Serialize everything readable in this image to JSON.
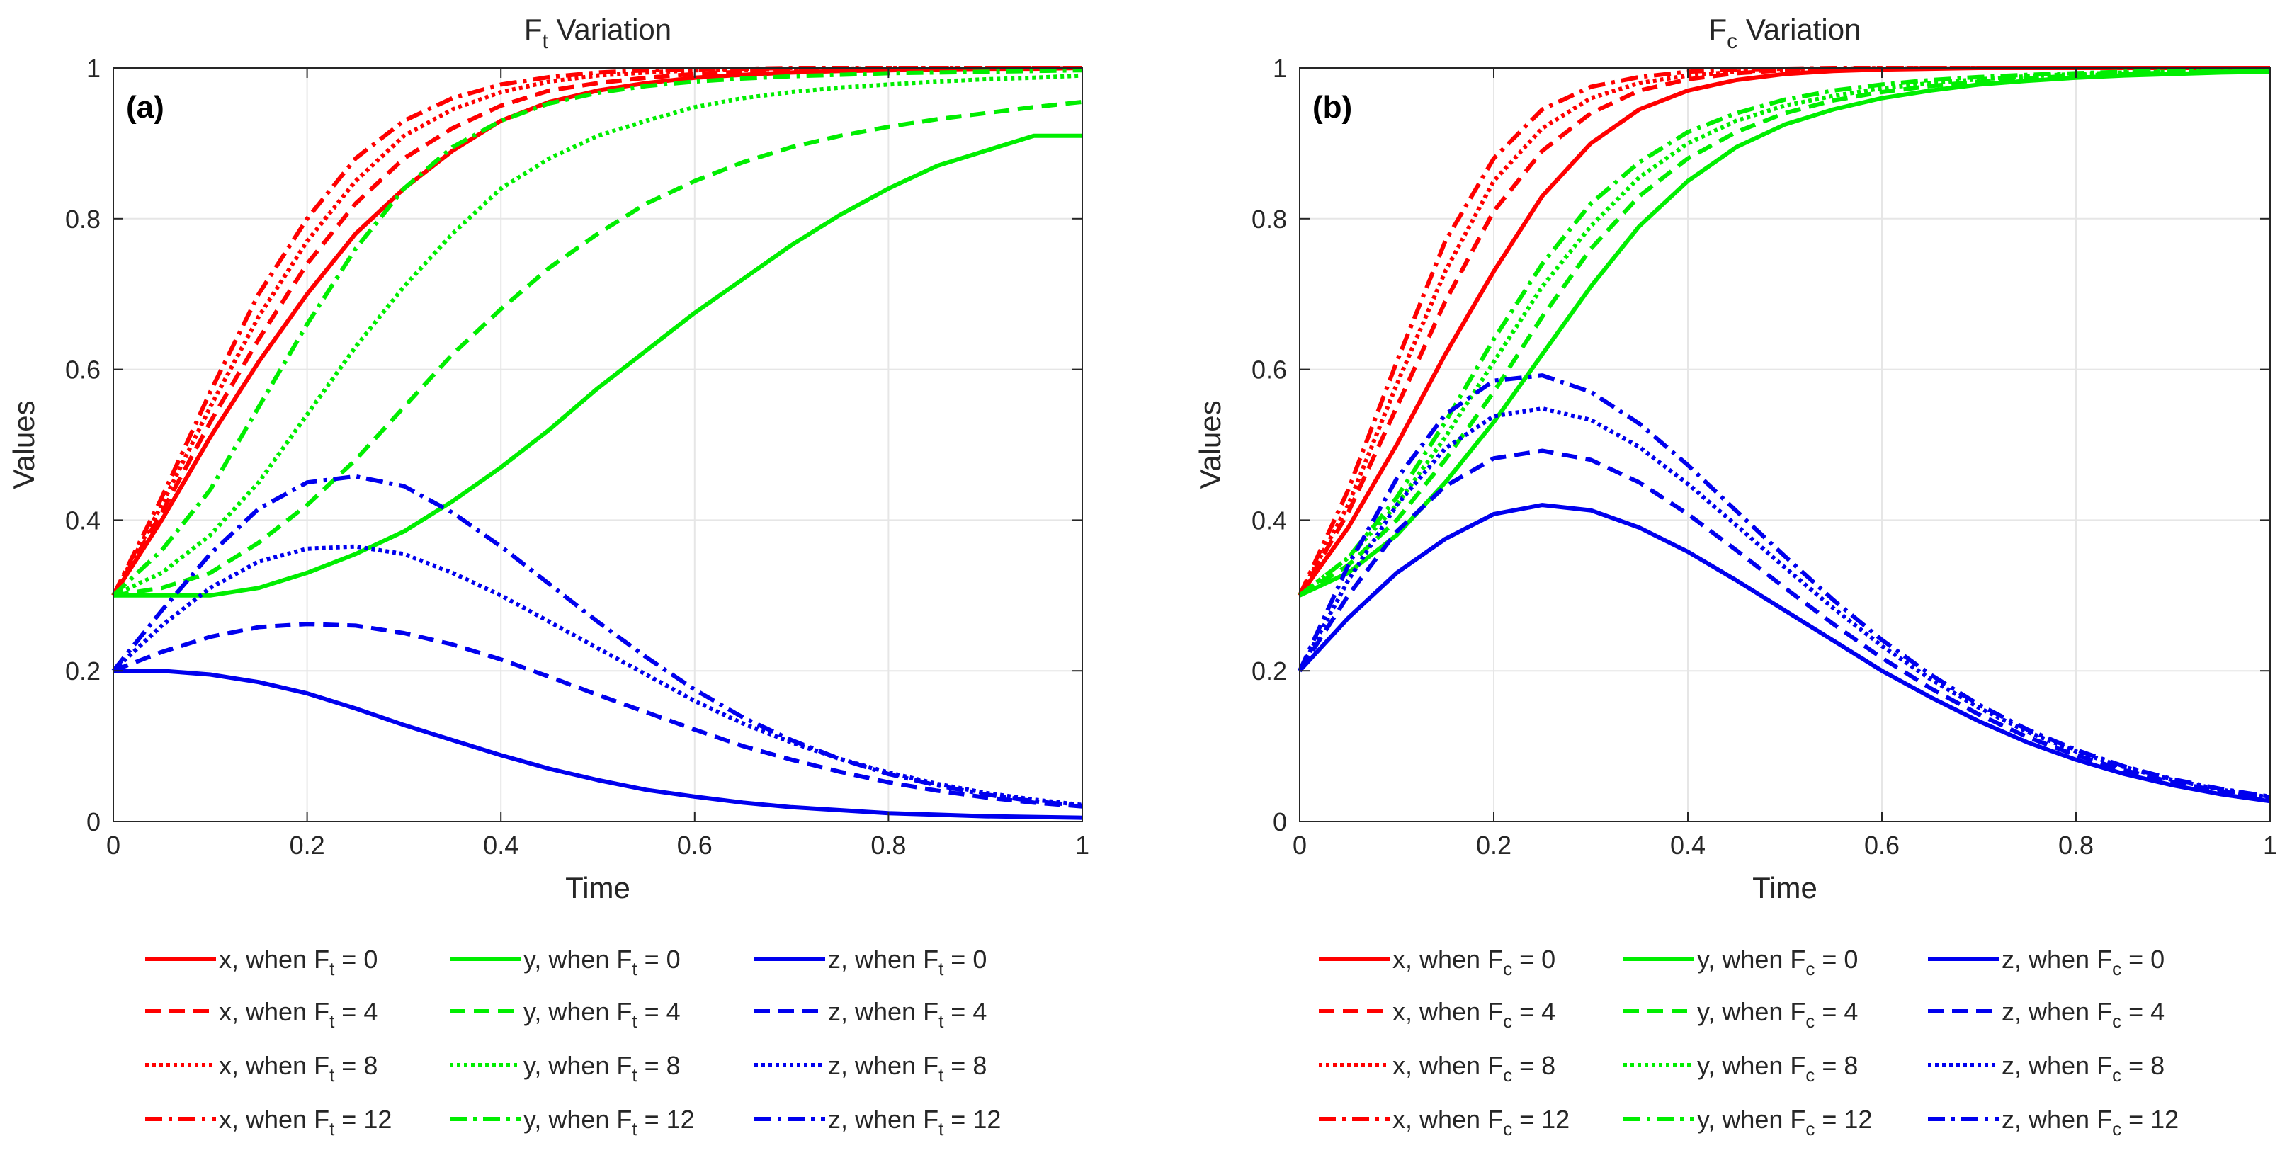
{
  "chart_data": [
    {
      "type": "line",
      "panel_label": "(a)",
      "title": {
        "prefix": "F",
        "subscript": "t",
        "suffix": " Variation"
      },
      "xlabel": "Time",
      "ylabel": "Values",
      "xlim": [
        0,
        1
      ],
      "ylim": [
        0,
        1
      ],
      "x_ticks": [
        "0",
        "0.2",
        "0.4",
        "0.6",
        "0.8",
        "1"
      ],
      "y_ticks": [
        "0",
        "0.2",
        "0.4",
        "0.6",
        "0.8",
        "1"
      ],
      "grid": true,
      "legend_position": "bottom, outside, 3 columns",
      "x": [
        0,
        0.05,
        0.1,
        0.15,
        0.2,
        0.25,
        0.3,
        0.35,
        0.4,
        0.45,
        0.5,
        0.55,
        0.6,
        0.65,
        0.7,
        0.75,
        0.8,
        0.85,
        0.9,
        0.95,
        1
      ],
      "series": [
        {
          "name": "x, when F_t = 0",
          "legend": {
            "var": "x",
            "sub": "t",
            "val": "0"
          },
          "color": "#ff0000",
          "dash": "solid",
          "values": [
            0.3,
            0.4,
            0.51,
            0.61,
            0.7,
            0.78,
            0.84,
            0.89,
            0.93,
            0.955,
            0.97,
            0.98,
            0.987,
            0.991,
            0.994,
            0.996,
            0.997,
            0.998,
            0.999,
            0.999,
            1.0
          ]
        },
        {
          "name": "x, when F_t = 4",
          "legend": {
            "var": "x",
            "sub": "t",
            "val": "4"
          },
          "color": "#ff0000",
          "dash": "dashed",
          "values": [
            0.3,
            0.41,
            0.53,
            0.64,
            0.74,
            0.82,
            0.88,
            0.92,
            0.95,
            0.97,
            0.98,
            0.987,
            0.992,
            0.995,
            0.997,
            0.998,
            0.999,
            0.999,
            1.0,
            1.0,
            1.0
          ]
        },
        {
          "name": "x, when F_t = 8",
          "legend": {
            "var": "x",
            "sub": "t",
            "val": "8"
          },
          "color": "#ff0000",
          "dash": "dotted",
          "values": [
            0.3,
            0.42,
            0.55,
            0.67,
            0.77,
            0.85,
            0.91,
            0.945,
            0.968,
            0.982,
            0.99,
            0.994,
            0.997,
            0.998,
            0.999,
            0.999,
            1.0,
            1.0,
            1.0,
            1.0,
            1.0
          ]
        },
        {
          "name": "x, when F_t = 12",
          "legend": {
            "var": "x",
            "sub": "t",
            "val": "12"
          },
          "color": "#ff0000",
          "dash": "dashdot",
          "values": [
            0.3,
            0.43,
            0.57,
            0.7,
            0.8,
            0.88,
            0.93,
            0.96,
            0.978,
            0.988,
            0.994,
            0.997,
            0.998,
            0.999,
            1.0,
            1.0,
            1.0,
            1.0,
            1.0,
            1.0,
            1.0
          ]
        },
        {
          "name": "y, when F_t = 0",
          "legend": {
            "var": "y",
            "sub": "t",
            "val": "0"
          },
          "color": "#00ee00",
          "dash": "solid",
          "values": [
            0.3,
            0.3,
            0.3,
            0.31,
            0.33,
            0.355,
            0.385,
            0.425,
            0.47,
            0.52,
            0.575,
            0.625,
            0.675,
            0.72,
            0.765,
            0.805,
            0.84,
            0.87,
            0.89,
            0.91,
            0.91
          ]
        },
        {
          "name": "y, when F_t = 4",
          "legend": {
            "var": "y",
            "sub": "t",
            "val": "4"
          },
          "color": "#00ee00",
          "dash": "dashed",
          "values": [
            0.3,
            0.31,
            0.33,
            0.37,
            0.42,
            0.48,
            0.55,
            0.62,
            0.68,
            0.735,
            0.78,
            0.82,
            0.85,
            0.875,
            0.895,
            0.91,
            0.922,
            0.932,
            0.94,
            0.948,
            0.955
          ]
        },
        {
          "name": "y, when F_t = 8",
          "legend": {
            "var": "y",
            "sub": "t",
            "val": "8"
          },
          "color": "#00ee00",
          "dash": "dotted",
          "values": [
            0.3,
            0.33,
            0.38,
            0.45,
            0.54,
            0.63,
            0.71,
            0.78,
            0.84,
            0.88,
            0.91,
            0.93,
            0.948,
            0.96,
            0.968,
            0.974,
            0.978,
            0.982,
            0.985,
            0.987,
            0.99
          ]
        },
        {
          "name": "y, when F_t = 12",
          "legend": {
            "var": "y",
            "sub": "t",
            "val": "12"
          },
          "color": "#00ee00",
          "dash": "dashdot",
          "values": [
            0.3,
            0.36,
            0.44,
            0.55,
            0.66,
            0.76,
            0.84,
            0.895,
            0.93,
            0.953,
            0.967,
            0.976,
            0.982,
            0.986,
            0.989,
            0.991,
            0.993,
            0.994,
            0.995,
            0.996,
            0.997
          ]
        },
        {
          "name": "z, when F_t = 0",
          "legend": {
            "var": "z",
            "sub": "t",
            "val": "0"
          },
          "color": "#0000ee",
          "dash": "solid",
          "values": [
            0.2,
            0.2,
            0.195,
            0.185,
            0.17,
            0.15,
            0.128,
            0.108,
            0.088,
            0.07,
            0.055,
            0.042,
            0.033,
            0.025,
            0.019,
            0.015,
            0.011,
            0.009,
            0.007,
            0.006,
            0.005
          ]
        },
        {
          "name": "z, when F_t = 4",
          "legend": {
            "var": "z",
            "sub": "t",
            "val": "4"
          },
          "color": "#0000ee",
          "dash": "dashed",
          "values": [
            0.2,
            0.225,
            0.245,
            0.258,
            0.262,
            0.26,
            0.25,
            0.235,
            0.215,
            0.192,
            0.168,
            0.145,
            0.122,
            0.1,
            0.082,
            0.066,
            0.052,
            0.041,
            0.032,
            0.025,
            0.02
          ]
        },
        {
          "name": "z, when F_t = 8",
          "legend": {
            "var": "z",
            "sub": "t",
            "val": "8"
          },
          "color": "#0000ee",
          "dash": "dotted",
          "values": [
            0.2,
            0.26,
            0.31,
            0.345,
            0.362,
            0.365,
            0.355,
            0.33,
            0.3,
            0.265,
            0.23,
            0.195,
            0.16,
            0.13,
            0.105,
            0.083,
            0.065,
            0.05,
            0.038,
            0.029,
            0.022
          ]
        },
        {
          "name": "z, when F_t = 12",
          "legend": {
            "var": "z",
            "sub": "t",
            "val": "12"
          },
          "color": "#0000ee",
          "dash": "dashdot",
          "values": [
            0.2,
            0.28,
            0.355,
            0.415,
            0.45,
            0.458,
            0.445,
            0.41,
            0.365,
            0.315,
            0.265,
            0.218,
            0.175,
            0.138,
            0.108,
            0.083,
            0.063,
            0.048,
            0.036,
            0.027,
            0.021
          ]
        }
      ]
    },
    {
      "type": "line",
      "panel_label": "(b)",
      "title": {
        "prefix": "F",
        "subscript": "c",
        "suffix": " Variation"
      },
      "xlabel": "Time",
      "ylabel": "Values",
      "xlim": [
        0,
        1
      ],
      "ylim": [
        0,
        1
      ],
      "x_ticks": [
        "0",
        "0.2",
        "0.4",
        "0.6",
        "0.8",
        "1"
      ],
      "y_ticks": [
        "0",
        "0.2",
        "0.4",
        "0.6",
        "0.8",
        "1"
      ],
      "grid": true,
      "legend_position": "bottom, outside, 3 columns",
      "x": [
        0,
        0.05,
        0.1,
        0.15,
        0.2,
        0.25,
        0.3,
        0.35,
        0.4,
        0.45,
        0.5,
        0.55,
        0.6,
        0.65,
        0.7,
        0.75,
        0.8,
        0.85,
        0.9,
        0.95,
        1
      ],
      "series": [
        {
          "name": "x, when F_c = 0",
          "legend": {
            "var": "x",
            "sub": "c",
            "val": "0"
          },
          "color": "#ff0000",
          "dash": "solid",
          "values": [
            0.3,
            0.39,
            0.5,
            0.62,
            0.73,
            0.83,
            0.9,
            0.945,
            0.97,
            0.984,
            0.992,
            0.996,
            0.998,
            0.999,
            1.0,
            1.0,
            1.0,
            1.0,
            1.0,
            1.0,
            1.0
          ]
        },
        {
          "name": "x, when F_c = 4",
          "legend": {
            "var": "x",
            "sub": "c",
            "val": "4"
          },
          "color": "#ff0000",
          "dash": "dashed",
          "values": [
            0.3,
            0.41,
            0.55,
            0.69,
            0.81,
            0.89,
            0.94,
            0.97,
            0.985,
            0.993,
            0.997,
            0.998,
            0.999,
            1.0,
            1.0,
            1.0,
            1.0,
            1.0,
            1.0,
            1.0,
            1.0
          ]
        },
        {
          "name": "x, when F_c = 8",
          "legend": {
            "var": "x",
            "sub": "c",
            "val": "8"
          },
          "color": "#ff0000",
          "dash": "dotted",
          "values": [
            0.3,
            0.42,
            0.58,
            0.73,
            0.85,
            0.92,
            0.96,
            0.98,
            0.99,
            0.995,
            0.998,
            0.999,
            1.0,
            1.0,
            1.0,
            1.0,
            1.0,
            1.0,
            1.0,
            1.0,
            1.0
          ]
        },
        {
          "name": "x, when F_c = 12",
          "legend": {
            "var": "x",
            "sub": "c",
            "val": "12"
          },
          "color": "#ff0000",
          "dash": "dashdot",
          "values": [
            0.3,
            0.44,
            0.61,
            0.77,
            0.88,
            0.945,
            0.975,
            0.988,
            0.995,
            0.998,
            0.999,
            1.0,
            1.0,
            1.0,
            1.0,
            1.0,
            1.0,
            1.0,
            1.0,
            1.0,
            1.0
          ]
        },
        {
          "name": "y, when F_c = 0",
          "legend": {
            "var": "y",
            "sub": "c",
            "val": "0"
          },
          "color": "#00ee00",
          "dash": "solid",
          "values": [
            0.3,
            0.33,
            0.38,
            0.45,
            0.53,
            0.62,
            0.71,
            0.79,
            0.85,
            0.895,
            0.925,
            0.945,
            0.96,
            0.97,
            0.978,
            0.983,
            0.987,
            0.99,
            0.992,
            0.994,
            0.995
          ]
        },
        {
          "name": "y, when F_c = 4",
          "legend": {
            "var": "y",
            "sub": "c",
            "val": "4"
          },
          "color": "#00ee00",
          "dash": "dashed",
          "values": [
            0.3,
            0.34,
            0.4,
            0.48,
            0.57,
            0.67,
            0.76,
            0.83,
            0.88,
            0.915,
            0.94,
            0.957,
            0.968,
            0.976,
            0.982,
            0.986,
            0.99,
            0.992,
            0.994,
            0.995,
            0.996
          ]
        },
        {
          "name": "y, when F_c = 8",
          "legend": {
            "var": "y",
            "sub": "c",
            "val": "8"
          },
          "color": "#00ee00",
          "dash": "dotted",
          "values": [
            0.3,
            0.35,
            0.42,
            0.51,
            0.61,
            0.71,
            0.79,
            0.855,
            0.9,
            0.93,
            0.95,
            0.963,
            0.973,
            0.98,
            0.985,
            0.989,
            0.992,
            0.994,
            0.995,
            0.996,
            0.997
          ]
        },
        {
          "name": "y, when F_c = 12",
          "legend": {
            "var": "y",
            "sub": "c",
            "val": "12"
          },
          "color": "#00ee00",
          "dash": "dashdot",
          "values": [
            0.3,
            0.35,
            0.43,
            0.53,
            0.64,
            0.74,
            0.82,
            0.875,
            0.915,
            0.94,
            0.958,
            0.97,
            0.978,
            0.984,
            0.988,
            0.991,
            0.993,
            0.995,
            0.996,
            0.997,
            0.998
          ]
        },
        {
          "name": "z, when F_c = 0",
          "legend": {
            "var": "z",
            "sub": "c",
            "val": "0"
          },
          "color": "#0000ee",
          "dash": "solid",
          "values": [
            0.2,
            0.27,
            0.33,
            0.375,
            0.408,
            0.42,
            0.413,
            0.39,
            0.358,
            0.32,
            0.28,
            0.24,
            0.2,
            0.165,
            0.133,
            0.105,
            0.082,
            0.063,
            0.048,
            0.036,
            0.027
          ]
        },
        {
          "name": "z, when F_c = 4",
          "legend": {
            "var": "z",
            "sub": "c",
            "val": "4"
          },
          "color": "#0000ee",
          "dash": "dashed",
          "values": [
            0.2,
            0.3,
            0.385,
            0.445,
            0.482,
            0.492,
            0.48,
            0.45,
            0.408,
            0.36,
            0.31,
            0.262,
            0.217,
            0.177,
            0.142,
            0.112,
            0.088,
            0.068,
            0.052,
            0.04,
            0.03
          ]
        },
        {
          "name": "z, when F_c = 8",
          "legend": {
            "var": "z",
            "sub": "c",
            "val": "8"
          },
          "color": "#0000ee",
          "dash": "dotted",
          "values": [
            0.2,
            0.32,
            0.42,
            0.495,
            0.538,
            0.548,
            0.533,
            0.497,
            0.448,
            0.393,
            0.337,
            0.283,
            0.233,
            0.189,
            0.151,
            0.119,
            0.093,
            0.072,
            0.055,
            0.042,
            0.032
          ]
        },
        {
          "name": "z, when F_c = 12",
          "legend": {
            "var": "z",
            "sub": "c",
            "val": "12"
          },
          "color": "#0000ee",
          "dash": "dashdot",
          "values": [
            0.2,
            0.34,
            0.455,
            0.54,
            0.585,
            0.592,
            0.57,
            0.528,
            0.473,
            0.412,
            0.352,
            0.294,
            0.241,
            0.195,
            0.155,
            0.122,
            0.095,
            0.073,
            0.056,
            0.043,
            0.033
          ]
        }
      ]
    }
  ]
}
